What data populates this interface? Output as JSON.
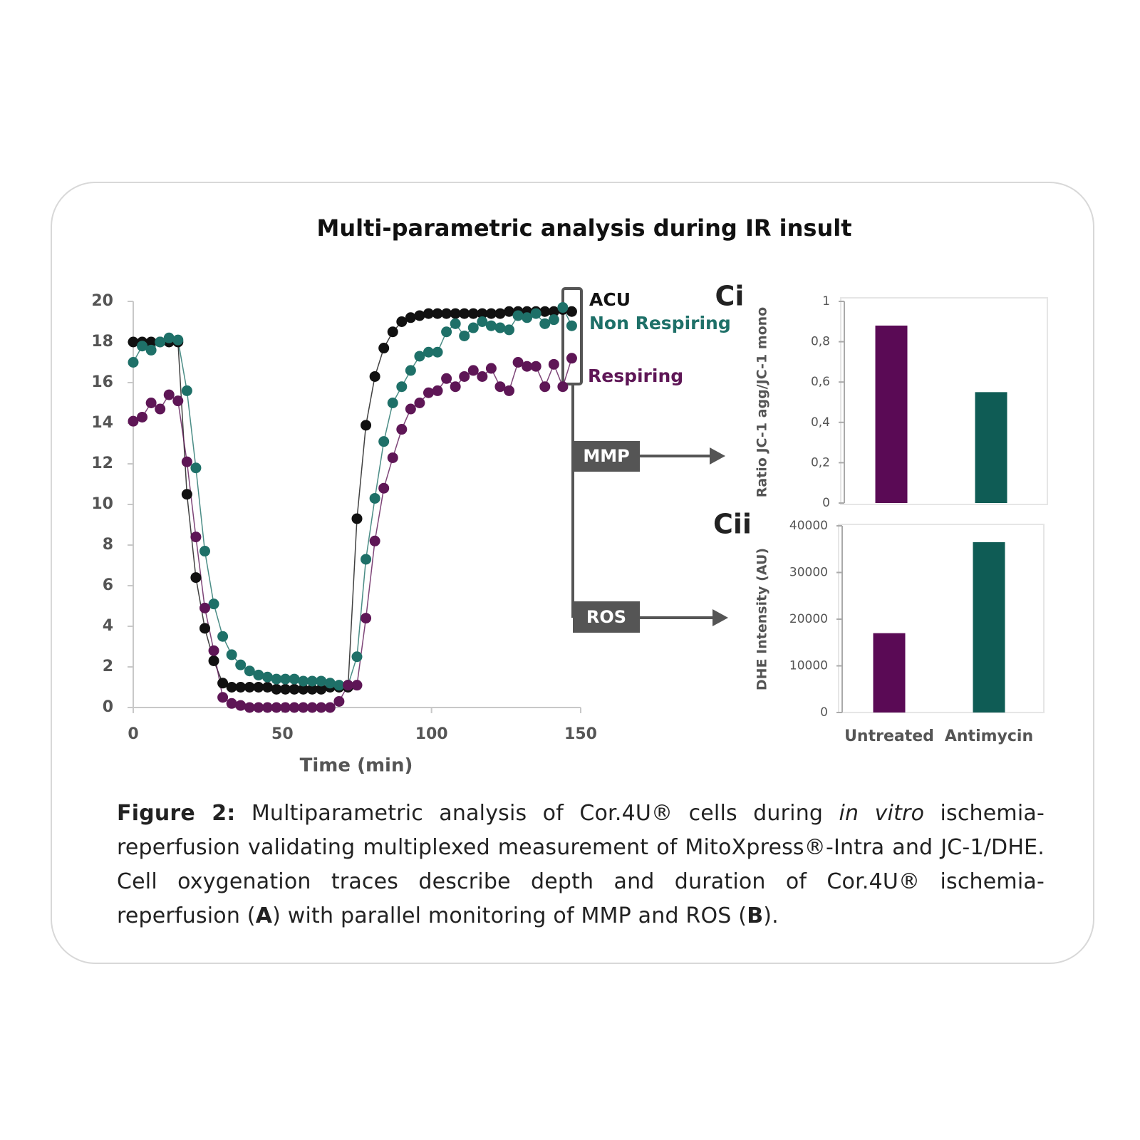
{
  "title": "Multi-parametric analysis during IR insult",
  "annotations": [
    "MMP",
    "ROS"
  ],
  "caption": {
    "label": "Figure 2:",
    "parts": [
      "Multiparametric analysis of Cor.4U® cells during ",
      "in vitro",
      " ischemia-reperfusion validating multiplexed measurement of MitoXpress®-Intra and JC-1/DHE. Cell oxygenation traces describe depth and duration of Cor.4U® ischemia-reperfusion (",
      "A",
      ") with parallel monitoring of MMP and ROS (",
      "B",
      ")."
    ]
  },
  "chart_data": [
    {
      "type": "line",
      "x_label": "Time (min)",
      "xlim": [
        0,
        150
      ],
      "xticks": [
        0,
        50,
        100,
        150
      ],
      "ylim": [
        0,
        20
      ],
      "yticks": [
        0,
        2,
        4,
        6,
        8,
        10,
        12,
        14,
        16,
        18,
        20
      ],
      "x": [
        0,
        3,
        6,
        9,
        12,
        15,
        18,
        21,
        24,
        27,
        30,
        33,
        36,
        39,
        42,
        45,
        48,
        51,
        54,
        57,
        60,
        63,
        66,
        69,
        72,
        75,
        78,
        81,
        84,
        87,
        90,
        93,
        96,
        99,
        102,
        105,
        108,
        111,
        114,
        117,
        120,
        123,
        126,
        129,
        132,
        135,
        138,
        141,
        144,
        147
      ],
      "series": [
        {
          "name": "ACU",
          "color": "#111111",
          "values": [
            18,
            18,
            18,
            18,
            18,
            18,
            10.5,
            6.4,
            3.9,
            2.3,
            1.2,
            1,
            1,
            1,
            1,
            1,
            0.9,
            0.9,
            0.9,
            0.9,
            0.9,
            0.9,
            1,
            1,
            1,
            9.3,
            13.9,
            16.3,
            17.7,
            18.5,
            19,
            19.2,
            19.3,
            19.4,
            19.4,
            19.4,
            19.4,
            19.4,
            19.4,
            19.4,
            19.4,
            19.4,
            19.5,
            19.5,
            19.5,
            19.5,
            19.5,
            19.5,
            19.6,
            19.5
          ]
        },
        {
          "name": "Non Respiring",
          "color": "#1e7068",
          "values": [
            17,
            17.8,
            17.6,
            18,
            18.2,
            18.1,
            15.6,
            11.8,
            7.7,
            5.1,
            3.5,
            2.6,
            2.1,
            1.8,
            1.6,
            1.5,
            1.4,
            1.4,
            1.4,
            1.3,
            1.3,
            1.3,
            1.2,
            1.1,
            1.1,
            2.5,
            7.3,
            10.3,
            13.1,
            15,
            15.8,
            16.6,
            17.3,
            17.5,
            17.5,
            18.5,
            18.9,
            18.3,
            18.7,
            19,
            18.8,
            18.7,
            18.6,
            19.3,
            19.2,
            19.4,
            18.9,
            19.1,
            19.7,
            18.8
          ]
        },
        {
          "name": "Respiring",
          "color": "#5e1656",
          "values": [
            14.1,
            14.3,
            15,
            14.7,
            15.4,
            15.1,
            12.1,
            8.4,
            4.9,
            2.8,
            0.5,
            0.2,
            0.1,
            0,
            0,
            0,
            0,
            0,
            0,
            0,
            0,
            0,
            0,
            0.3,
            1.1,
            1.1,
            4.4,
            8.2,
            10.8,
            12.3,
            13.7,
            14.7,
            15,
            15.5,
            15.6,
            16.2,
            15.8,
            16.3,
            16.6,
            16.3,
            16.7,
            15.8,
            15.6,
            17,
            16.8,
            16.8,
            15.8,
            16.9,
            15.8,
            17.2
          ]
        }
      ]
    },
    {
      "type": "bar",
      "panel": "Ci",
      "y_label": "Ratio JC-1 agg/JC-1 mono",
      "categories": [
        null,
        null
      ],
      "values": [
        0.88,
        0.55
      ],
      "colors": [
        "#5a0a55",
        "#0f5c55"
      ],
      "ylim": [
        0,
        1
      ],
      "yticks": [
        0,
        {
          "value": 0.2,
          "label": "0,2"
        },
        {
          "value": 0.4,
          "label": "0,4"
        },
        {
          "value": 0.6,
          "label": "0,6"
        },
        {
          "value": 0.8,
          "label": "0,8"
        },
        1
      ]
    },
    {
      "type": "bar",
      "panel": "Cii",
      "y_label": "DHE Intensity (AU)",
      "categories": [
        "Untreated",
        "Antimycin"
      ],
      "values": [
        17000,
        36500
      ],
      "colors": [
        "#5a0a55",
        "#0f5c55"
      ],
      "ylim": [
        0,
        40000
      ],
      "yticks": [
        0,
        10000,
        20000,
        30000,
        40000
      ]
    }
  ]
}
